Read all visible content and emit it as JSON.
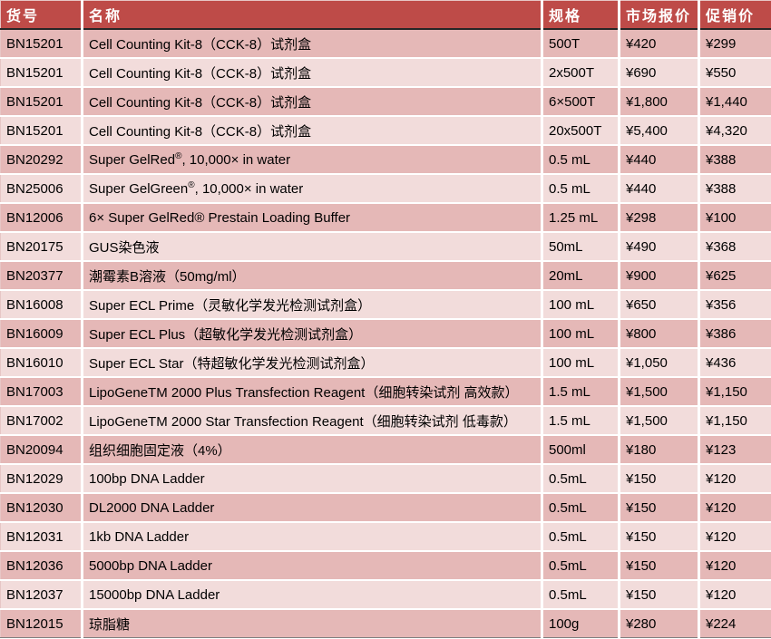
{
  "colors": {
    "header_bg": "#BE4B48",
    "header_text": "#FFFFFF",
    "row_dark_bg": "#E5B8B7",
    "row_light_bg": "#F2DCDB",
    "header_underline": "#262626",
    "table_bottom_border": "#7F7F7F",
    "cell_text": "#000000",
    "divider": "#FFFFFF"
  },
  "table": {
    "headers": [
      "货号",
      "名称",
      "规格",
      "市场报价",
      "促销价"
    ],
    "rows": [
      {
        "code": "BN15201",
        "name": "Cell Counting Kit-8（CCK-8）试剂盒",
        "spec": "500T",
        "market_price": "¥420",
        "promo_price": "¥299"
      },
      {
        "code": "BN15201",
        "name": "Cell Counting Kit-8（CCK-8）试剂盒",
        "spec": "2x500T",
        "market_price": "¥690",
        "promo_price": "¥550"
      },
      {
        "code": "BN15201",
        "name": "Cell Counting Kit-8（CCK-8）试剂盒",
        "spec": "6×500T",
        "market_price": "¥1,800",
        "promo_price": "¥1,440"
      },
      {
        "code": "BN15201",
        "name": "Cell Counting Kit-8（CCK-8）试剂盒",
        "spec": "20x500T",
        "market_price": "¥5,400",
        "promo_price": "¥4,320"
      },
      {
        "code": "BN20292",
        "name": [
          {
            "t": "Super GelRed"
          },
          {
            "t": "®",
            "sup": true
          },
          {
            "t": ", 10,000× in water"
          }
        ],
        "spec": "0.5 mL",
        "market_price": "¥440",
        "promo_price": "¥388"
      },
      {
        "code": "BN25006",
        "name": [
          {
            "t": "Super GelGreen"
          },
          {
            "t": "®",
            "sup": true
          },
          {
            "t": ", 10,000× in water"
          }
        ],
        "spec": "0.5 mL",
        "market_price": "¥440",
        "promo_price": "¥388"
      },
      {
        "code": "BN12006",
        "name": "6× Super GelRed® Prestain Loading Buffer",
        "spec": "1.25 mL",
        "market_price": "¥298",
        "promo_price": "¥100"
      },
      {
        "code": "BN20175",
        "name": "GUS染色液",
        "spec": "50mL",
        "market_price": "¥490",
        "promo_price": "¥368"
      },
      {
        "code": "BN20377",
        "name": "潮霉素B溶液（50mg/ml）",
        "spec": "20mL",
        "market_price": "¥900",
        "promo_price": "¥625"
      },
      {
        "code": "BN16008",
        "name": "Super ECL Prime（灵敏化学发光检测试剂盒）",
        "spec": "100 mL",
        "market_price": "¥650",
        "promo_price": "¥356"
      },
      {
        "code": "BN16009",
        "name": "Super ECL Plus（超敏化学发光检测试剂盒）",
        "spec": "100 mL",
        "market_price": "¥800",
        "promo_price": "¥386"
      },
      {
        "code": "BN16010",
        "name": "Super ECL Star（特超敏化学发光检测试剂盒）",
        "spec": "100 mL",
        "market_price": "¥1,050",
        "promo_price": "¥436"
      },
      {
        "code": "BN17003",
        "name": "LipoGeneTM 2000 Plus Transfection Reagent（细胞转染试剂 高效款）",
        "spec": "1.5 mL",
        "market_price": "¥1,500",
        "promo_price": "¥1,150"
      },
      {
        "code": "BN17002",
        "name": "LipoGeneTM 2000 Star Transfection Reagent（细胞转染试剂 低毒款）",
        "spec": "1.5 mL",
        "market_price": "¥1,500",
        "promo_price": "¥1,150"
      },
      {
        "code": "BN20094",
        "name": "组织细胞固定液（4%）",
        "spec": "500ml",
        "market_price": "¥180",
        "promo_price": "¥123"
      },
      {
        "code": "BN12029",
        "name": "100bp DNA Ladder",
        "spec": "0.5mL",
        "market_price": "¥150",
        "promo_price": "¥120"
      },
      {
        "code": "BN12030",
        "name": "DL2000 DNA Ladder",
        "spec": "0.5mL",
        "market_price": "¥150",
        "promo_price": "¥120"
      },
      {
        "code": "BN12031",
        "name": "1kb DNA Ladder",
        "spec": "0.5mL",
        "market_price": "¥150",
        "promo_price": "¥120"
      },
      {
        "code": "BN12036",
        "name": "5000bp DNA Ladder",
        "spec": "0.5mL",
        "market_price": "¥150",
        "promo_price": "¥120"
      },
      {
        "code": "BN12037",
        "name": "15000bp DNA Ladder",
        "spec": "0.5mL",
        "market_price": "¥150",
        "promo_price": "¥120"
      },
      {
        "code": "BN12015",
        "name": "琼脂糖",
        "spec": "100g",
        "market_price": "¥280",
        "promo_price": "¥224"
      }
    ]
  }
}
